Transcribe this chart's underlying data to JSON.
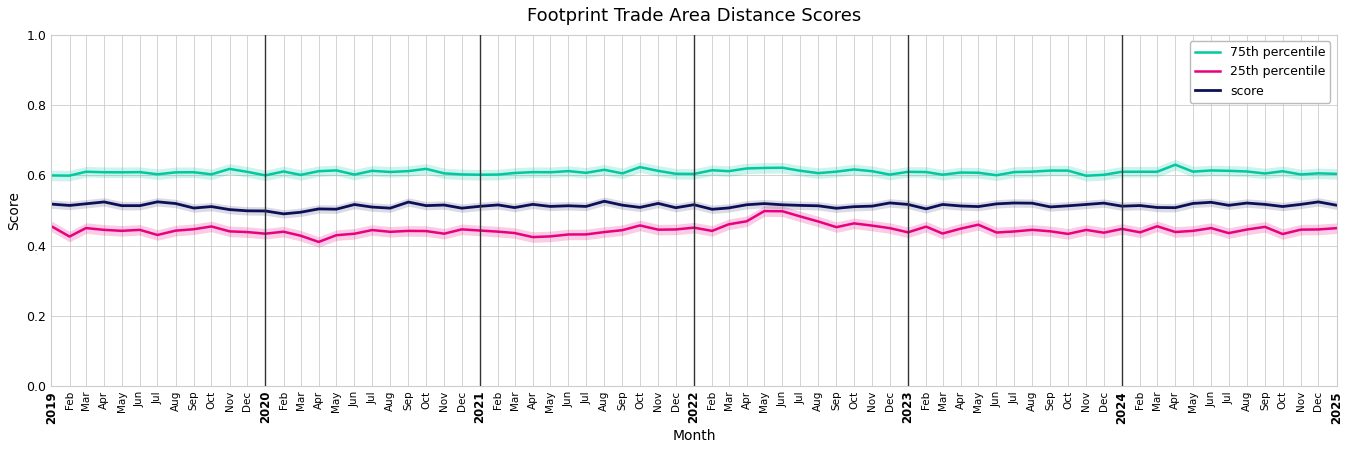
{
  "title": "Footprint Trade Area Distance Scores",
  "xlabel": "Month",
  "ylabel": "Score",
  "ylim": [
    0.0,
    1.0
  ],
  "yticks": [
    0.0,
    0.2,
    0.4,
    0.6,
    0.8,
    1.0
  ],
  "score_color": "#0d1057",
  "p25_color": "#e8007f",
  "p75_color": "#00c8a0",
  "vline_color": "#333333",
  "bg_color": "#ffffff",
  "plot_bg_color": "#ffffff",
  "grid_color": "#cccccc",
  "legend_labels": [
    "score",
    "25th percentile",
    "75th percentile"
  ],
  "score_band_alpha": 0.15,
  "p25_band_alpha": 0.2,
  "p75_band_alpha": 0.2,
  "score_lw": 2.0,
  "p25_lw": 1.8,
  "p75_lw": 1.8
}
